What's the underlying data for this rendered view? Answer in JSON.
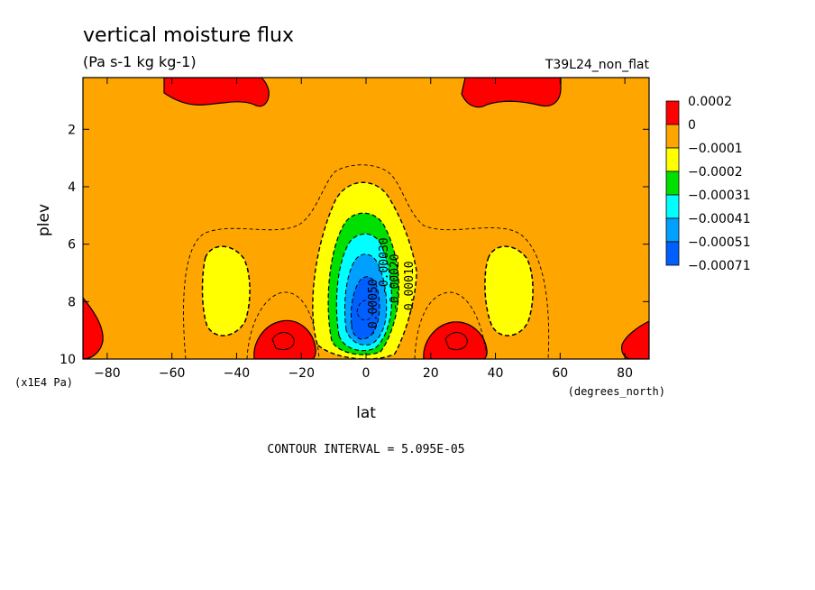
{
  "chart_data": {
    "type": "heatmap",
    "title": "vertical moisture flux",
    "subtitle": "(Pa s-1 kg kg-1)",
    "run_label": "T39L24_non_flat",
    "xlabel": "lat",
    "ylabel": "plev",
    "x_units": "(degrees_north)",
    "y_units": "(x1E4 Pa)",
    "xlim": [
      -87.5,
      87.5
    ],
    "ylim": [
      10,
      0.2
    ],
    "x_ticks": [
      "-80",
      "-60",
      "-40",
      "-20",
      "0",
      "20",
      "40",
      "60",
      "80"
    ],
    "y_ticks": [
      "2",
      "4",
      "6",
      "8",
      "10"
    ],
    "colorbar": {
      "labels": [
        "0.0002",
        "0",
        "-0.0001",
        "-0.0002",
        "-0.00031",
        "-0.00041",
        "-0.00051",
        "-0.00071"
      ],
      "colors": [
        "#ff0000",
        "#ffa500",
        "#ffff00",
        "#00e000",
        "#00ffff",
        "#00a0ff",
        "#0060ff"
      ]
    },
    "contour_labels": [
      "-0.00010",
      "-0.00020",
      "-0.00030",
      "-0.00050"
    ],
    "footer": "CONTOUR INTERVAL = 5.095E-05"
  }
}
